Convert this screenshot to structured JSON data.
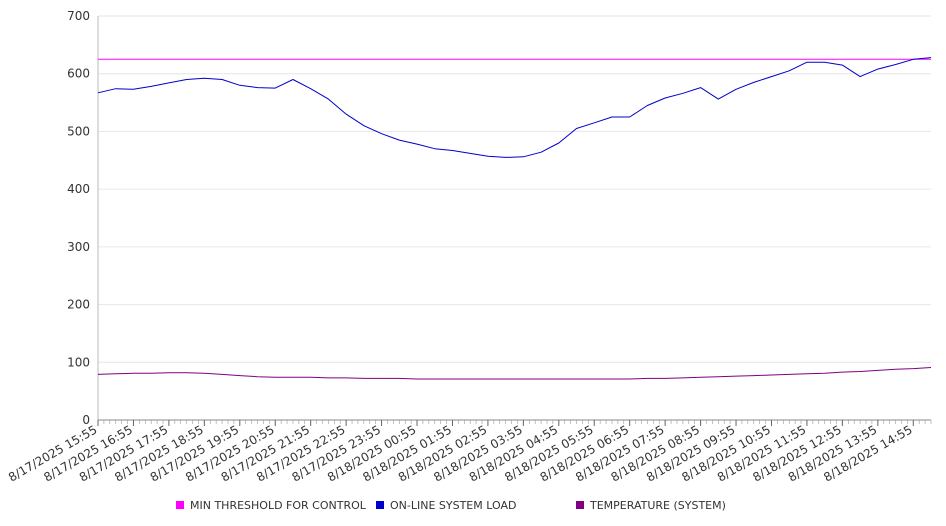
{
  "chart_data": {
    "type": "line",
    "title": "",
    "xlabel": "",
    "ylabel": "",
    "ylim": [
      0,
      700
    ],
    "y_ticks": [
      0,
      100,
      200,
      300,
      400,
      500,
      600,
      700
    ],
    "grid": "horizontal",
    "legend_position": "bottom",
    "x_tick_labels": [
      "8/17/2025 15:55",
      "8/17/2025 16:55",
      "8/17/2025 17:55",
      "8/17/2025 18:55",
      "8/17/2025 19:55",
      "8/17/2025 20:55",
      "8/17/2025 21:55",
      "8/17/2025 22:55",
      "8/17/2025 23:55",
      "8/18/2025 00:55",
      "8/18/2025 01:55",
      "8/18/2025 02:55",
      "8/18/2025 03:55",
      "8/18/2025 04:55",
      "8/18/2025 05:55",
      "8/18/2025 06:55",
      "8/18/2025 07:55",
      "8/18/2025 08:55",
      "8/18/2025 09:55",
      "8/18/2025 10:55",
      "8/18/2025 11:55",
      "8/18/2025 12:55",
      "8/18/2025 13:55",
      "8/18/2025 14:55"
    ],
    "x": [
      "8/17/2025 15:55",
      "8/17/2025 16:25",
      "8/17/2025 16:55",
      "8/17/2025 17:25",
      "8/17/2025 17:55",
      "8/17/2025 18:25",
      "8/17/2025 18:55",
      "8/17/2025 19:25",
      "8/17/2025 19:55",
      "8/17/2025 20:25",
      "8/17/2025 20:55",
      "8/17/2025 21:25",
      "8/17/2025 21:55",
      "8/17/2025 22:25",
      "8/17/2025 22:55",
      "8/17/2025 23:25",
      "8/17/2025 23:55",
      "8/18/2025 00:25",
      "8/18/2025 00:55",
      "8/18/2025 01:25",
      "8/18/2025 01:55",
      "8/18/2025 02:25",
      "8/18/2025 02:55",
      "8/18/2025 03:25",
      "8/18/2025 03:55",
      "8/18/2025 04:25",
      "8/18/2025 04:55",
      "8/18/2025 05:25",
      "8/18/2025 05:55",
      "8/18/2025 06:25",
      "8/18/2025 06:55",
      "8/18/2025 07:25",
      "8/18/2025 07:55",
      "8/18/2025 08:25",
      "8/18/2025 08:55",
      "8/18/2025 09:25",
      "8/18/2025 09:55",
      "8/18/2025 10:25",
      "8/18/2025 10:55",
      "8/18/2025 11:25",
      "8/18/2025 11:55",
      "8/18/2025 12:25",
      "8/18/2025 12:55",
      "8/18/2025 13:25",
      "8/18/2025 13:55",
      "8/18/2025 14:25",
      "8/18/2025 14:55",
      "8/18/2025 15:25"
    ],
    "series": [
      {
        "name": "MIN THRESHOLD FOR CONTROL",
        "color": "#ff00ff",
        "values": [
          625,
          625,
          625,
          625,
          625,
          625,
          625,
          625,
          625,
          625,
          625,
          625,
          625,
          625,
          625,
          625,
          625,
          625,
          625,
          625,
          625,
          625,
          625,
          625,
          625,
          625,
          625,
          625,
          625,
          625,
          625,
          625,
          625,
          625,
          625,
          625,
          625,
          625,
          625,
          625,
          625,
          625,
          625,
          625,
          625,
          625,
          625,
          625
        ]
      },
      {
        "name": "ON-LINE SYSTEM LOAD",
        "color": "#0000cc",
        "values": [
          567,
          574,
          573,
          578,
          584,
          590,
          592,
          590,
          580,
          576,
          575,
          590,
          574,
          556,
          530,
          510,
          496,
          485,
          478,
          470,
          467,
          462,
          457,
          455,
          456,
          464,
          480,
          505,
          515,
          525,
          525,
          545,
          558,
          566,
          576,
          556,
          573,
          585,
          595,
          605,
          620,
          620,
          615,
          595,
          608,
          616,
          625,
          628
        ]
      },
      {
        "name": "TEMPERATURE (SYSTEM)",
        "color": "#800080",
        "values": [
          79,
          80,
          81,
          81,
          82,
          82,
          81,
          79,
          77,
          75,
          74,
          74,
          74,
          73,
          73,
          72,
          72,
          72,
          71,
          71,
          71,
          71,
          71,
          71,
          71,
          71,
          71,
          71,
          71,
          71,
          71,
          72,
          72,
          73,
          74,
          75,
          76,
          77,
          78,
          79,
          80,
          81,
          83,
          84,
          86,
          88,
          89,
          91
        ]
      }
    ]
  }
}
